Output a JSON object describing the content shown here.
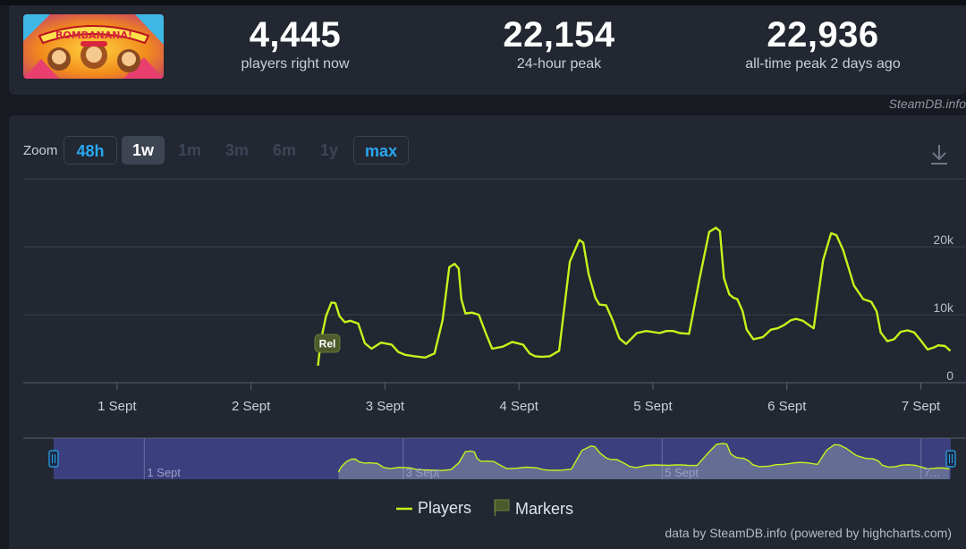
{
  "stats": [
    {
      "value": "4,445",
      "label": "players right now"
    },
    {
      "value": "22,154",
      "label": "24-hour peak"
    },
    {
      "value": "22,936",
      "label": "all-time peak 2 days ago"
    }
  ],
  "game_logo_text": "BOMBANANA!",
  "credit_top": "SteamDB.info",
  "zoom": {
    "label": "Zoom",
    "buttons": [
      {
        "label": "48h",
        "state": "enabled"
      },
      {
        "label": "1w",
        "state": "active"
      },
      {
        "label": "1m",
        "state": "disabled"
      },
      {
        "label": "3m",
        "state": "disabled"
      },
      {
        "label": "6m",
        "state": "disabled"
      },
      {
        "label": "1y",
        "state": "disabled"
      },
      {
        "label": "max",
        "state": "enabled"
      }
    ]
  },
  "icons": {
    "download": "download-icon",
    "players": "line-legend-icon",
    "markers": "flag-icon",
    "navigator_handle": "handle-icon"
  },
  "colors": {
    "series": "#c8f21c",
    "navigator_mask": "#3b3f7e",
    "background": "#222731",
    "accent": "#2aa7f0"
  },
  "legend": {
    "players": "Players",
    "markers": "Markers"
  },
  "credit_bottom": "data by SteamDB.info (powered by highcharts.com)",
  "chart_data": {
    "type": "line",
    "x_unit": "day offset from 1 Sept 00:00",
    "xlim": [
      -0.7,
      6.23
    ],
    "ylim": [
      0,
      30000
    ],
    "y_ticks": [
      0,
      10000,
      20000
    ],
    "y_tick_labels": [
      "0",
      "10k",
      "20k"
    ],
    "y_axis_position": "right",
    "x_tick_values": [
      0,
      1,
      2,
      3,
      4,
      5,
      6
    ],
    "x_tick_labels": [
      "1 Sept",
      "2 Sept",
      "3 Sept",
      "4 Sept",
      "5 Sept",
      "6 Sept",
      "7 Sept"
    ],
    "grid": true,
    "series": [
      {
        "name": "Players",
        "x": [
          1.5,
          1.52,
          1.56,
          1.6,
          1.63,
          1.66,
          1.7,
          1.74,
          1.8,
          1.85,
          1.9,
          1.97,
          2.05,
          2.1,
          2.15,
          2.22,
          2.3,
          2.37,
          2.43,
          2.48,
          2.52,
          2.55,
          2.57,
          2.6,
          2.65,
          2.7,
          2.75,
          2.8,
          2.88,
          2.95,
          3.03,
          3.08,
          3.12,
          3.17,
          3.23,
          3.3,
          3.38,
          3.45,
          3.48,
          3.52,
          3.57,
          3.6,
          3.65,
          3.7,
          3.75,
          3.8,
          3.88,
          3.95,
          4.05,
          4.1,
          4.15,
          4.2,
          4.27,
          4.35,
          4.42,
          4.47,
          4.5,
          4.53,
          4.57,
          4.6,
          4.63,
          4.67,
          4.7,
          4.75,
          4.82,
          4.88,
          4.93,
          4.98,
          5.03,
          5.07,
          5.12,
          5.2,
          5.27,
          5.33,
          5.37,
          5.42,
          5.5,
          5.57,
          5.6,
          5.63,
          5.67,
          5.7,
          5.75,
          5.8,
          5.85,
          5.9,
          5.95,
          6.0,
          6.05,
          6.1,
          6.13,
          6.18,
          6.22
        ],
        "values": [
          2500,
          6000,
          9800,
          11800,
          11700,
          9800,
          8900,
          9100,
          8700,
          5800,
          5000,
          5900,
          5600,
          4500,
          4100,
          3900,
          3700,
          4300,
          9200,
          17000,
          17500,
          16800,
          12300,
          10200,
          10300,
          10000,
          7400,
          5000,
          5300,
          6000,
          5600,
          4300,
          3900,
          3800,
          3900,
          4700,
          17800,
          21000,
          20600,
          16000,
          12500,
          11500,
          11400,
          9200,
          6500,
          5700,
          7300,
          7600,
          7300,
          7600,
          7600,
          7300,
          7200,
          15500,
          22200,
          22800,
          22300,
          15400,
          13000,
          12500,
          12300,
          10500,
          7800,
          6400,
          6700,
          7800,
          8000,
          8500,
          9200,
          9400,
          9100,
          8000,
          18000,
          22000,
          21700,
          19500,
          14300,
          12300,
          12100,
          11900,
          10500,
          7400,
          6100,
          6400,
          7500,
          7700,
          7400,
          6200,
          4900,
          5200,
          5500,
          5400,
          4700
        ]
      }
    ],
    "markers": [
      {
        "x": 1.55,
        "label": "Rel"
      }
    ],
    "navigator": {
      "xlim": [
        -0.7,
        6.23
      ],
      "x_tick_values": [
        0,
        2,
        4,
        6
      ],
      "x_tick_labels": [
        "1 Sept",
        "3 Sept",
        "5 Sept",
        "7..."
      ],
      "selected_range": [
        -0.7,
        6.23
      ]
    }
  }
}
